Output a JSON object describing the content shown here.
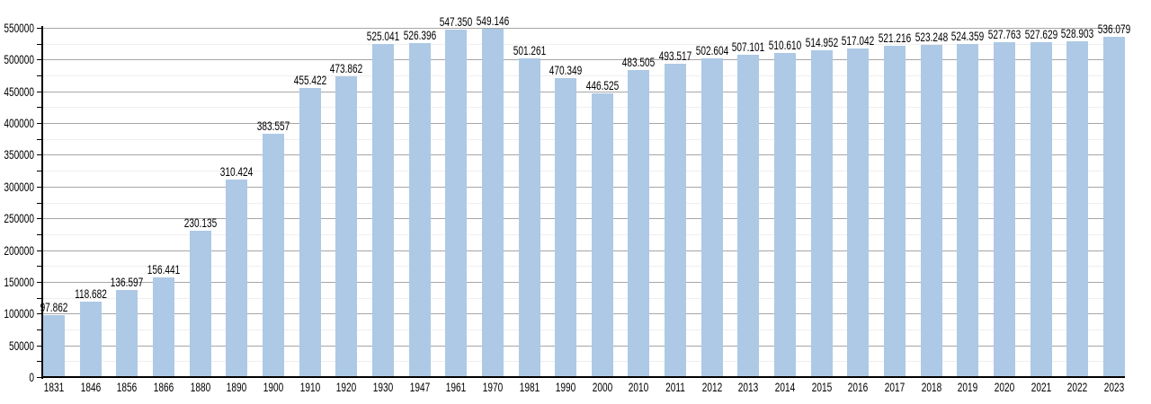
{
  "chart_data": {
    "type": "bar",
    "title": "",
    "xlabel": "",
    "ylabel": "",
    "legend": "none",
    "grid": "on",
    "ylim": [
      0,
      550000
    ],
    "y_major_step": 50000,
    "y_minor_step": 25000,
    "y_tick_labels": [
      "0",
      "50000",
      "100000",
      "150000",
      "200000",
      "250000",
      "300000",
      "350000",
      "400000",
      "450000",
      "500000",
      "550000"
    ],
    "categories": [
      "1831",
      "1846",
      "1856",
      "1866",
      "1880",
      "1890",
      "1900",
      "1910",
      "1920",
      "1930",
      "1947",
      "1961",
      "1970",
      "1981",
      "1990",
      "2000",
      "2010",
      "2011",
      "2012",
      "2013",
      "2014",
      "2015",
      "2016",
      "2017",
      "2018",
      "2019",
      "2020",
      "2021",
      "2022",
      "2023"
    ],
    "values": [
      97862,
      118682,
      136597,
      156441,
      230135,
      310424,
      383557,
      455422,
      473862,
      525041,
      526396,
      547350,
      549146,
      501261,
      470349,
      446525,
      483505,
      493517,
      502604,
      507101,
      510610,
      514952,
      517042,
      521216,
      523248,
      524359,
      527763,
      527629,
      528903,
      536079
    ],
    "value_labels": [
      "97.862",
      "118.682",
      "136.597",
      "156.441",
      "230.135",
      "310.424",
      "383.557",
      "455.422",
      "473.862",
      "525.041",
      "526.396",
      "547.350",
      "549.146",
      "501.261",
      "470.349",
      "446.525",
      "483.505",
      "493.517",
      "502.604",
      "507.101",
      "510.610",
      "514.952",
      "517.042",
      "521.216",
      "523.248",
      "524.359",
      "527.763",
      "527.629",
      "528.903",
      "536.079"
    ],
    "colors": {
      "bar": "#adc9e5",
      "major_grid": "#a6a6a6",
      "minor_grid": "#f0eeee",
      "axis": "#000000",
      "text": "#000000",
      "background": "#ffffff"
    }
  }
}
